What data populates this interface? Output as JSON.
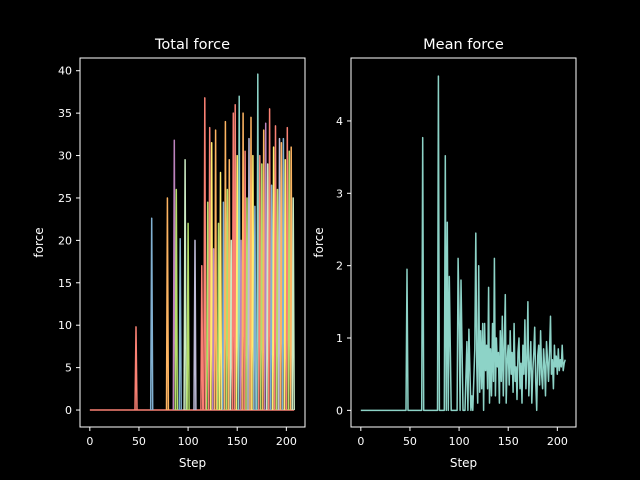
{
  "chart_data": [
    {
      "type": "line",
      "title": "Total force",
      "xlabel": "Step",
      "ylabel": "force",
      "xlim": [
        -10,
        219
      ],
      "ylim": [
        -2,
        41.5
      ],
      "xticks": [
        0,
        50,
        100,
        150,
        200
      ],
      "yticks": [
        0,
        5,
        10,
        15,
        20,
        25,
        30,
        35,
        40
      ],
      "xtick_labels": [
        "0",
        "50",
        "100",
        "150",
        "200"
      ],
      "ytick_labels": [
        "0",
        "5",
        "10",
        "15",
        "20",
        "25",
        "30",
        "35",
        "40"
      ],
      "grid": false,
      "note": "Many overlapping per-body force traces; each trace is a zero baseline with a single spike at one step (approximate).",
      "spike_series": [
        {
          "color": "#fa8174",
          "x": 47,
          "peak": 9.8
        },
        {
          "color": "#81b1d2",
          "x": 63,
          "peak": 22.6
        },
        {
          "color": "#fdb462",
          "x": 79,
          "peak": 25.0
        },
        {
          "color": "#bc82bd",
          "x": 86,
          "peak": 31.8
        },
        {
          "color": "#b3de69",
          "x": 88,
          "peak": 26.0
        },
        {
          "color": "#81b1d2",
          "x": 92,
          "peak": 20.2
        },
        {
          "color": "#ccebc4",
          "x": 97,
          "peak": 29.5
        },
        {
          "color": "#b3de69",
          "x": 100,
          "peak": 22.0
        },
        {
          "color": "#bfbbd9",
          "x": 107,
          "peak": 20.0
        },
        {
          "color": "#fa8174",
          "x": 114,
          "peak": 17.0
        },
        {
          "color": "#fa8174",
          "x": 117,
          "peak": 36.8
        },
        {
          "color": "#b3de69",
          "x": 120,
          "peak": 24.5
        },
        {
          "color": "#fa8174",
          "x": 122,
          "peak": 33.3
        },
        {
          "color": "#ffed6f",
          "x": 124,
          "peak": 31.5
        },
        {
          "color": "#bc82bd",
          "x": 126,
          "peak": 19.0
        },
        {
          "color": "#fdb462",
          "x": 128,
          "peak": 33.0
        },
        {
          "color": "#b3de69",
          "x": 131,
          "peak": 22.0
        },
        {
          "color": "#ffed6f",
          "x": 133,
          "peak": 28.0
        },
        {
          "color": "#81b1d2",
          "x": 136,
          "peak": 24.5
        },
        {
          "color": "#fdb462",
          "x": 138,
          "peak": 34.0
        },
        {
          "color": "#b3de69",
          "x": 140,
          "peak": 26.0
        },
        {
          "color": "#fdb462",
          "x": 142,
          "peak": 29.5
        },
        {
          "color": "#ccebc4",
          "x": 144,
          "peak": 20.0
        },
        {
          "color": "#fa8174",
          "x": 146,
          "peak": 35.0
        },
        {
          "color": "#fa8174",
          "x": 148,
          "peak": 36.0
        },
        {
          "color": "#ffed6f",
          "x": 150,
          "peak": 30.0
        },
        {
          "color": "#8dd3c7",
          "x": 152,
          "peak": 37.0
        },
        {
          "color": "#bc82bd",
          "x": 154,
          "peak": 20.0
        },
        {
          "color": "#fdb462",
          "x": 156,
          "peak": 35.0
        },
        {
          "color": "#fa8174",
          "x": 158,
          "peak": 30.5
        },
        {
          "color": "#b3de69",
          "x": 160,
          "peak": 25.0
        },
        {
          "color": "#bfbbd9",
          "x": 162,
          "peak": 32.0
        },
        {
          "color": "#fdb462",
          "x": 164,
          "peak": 34.5
        },
        {
          "color": "#ffed6f",
          "x": 166,
          "peak": 30.0
        },
        {
          "color": "#81b1d2",
          "x": 168,
          "peak": 24.0
        },
        {
          "color": "#8dd3c7",
          "x": 171,
          "peak": 39.6
        },
        {
          "color": "#fa8174",
          "x": 173,
          "peak": 30.0
        },
        {
          "color": "#b3de69",
          "x": 175,
          "peak": 29.0
        },
        {
          "color": "#fdb462",
          "x": 177,
          "peak": 33.0
        },
        {
          "color": "#bc82bd",
          "x": 179,
          "peak": 33.8
        },
        {
          "color": "#ccebc4",
          "x": 181,
          "peak": 29.0
        },
        {
          "color": "#fa8174",
          "x": 183,
          "peak": 35.5
        },
        {
          "color": "#81b1d2",
          "x": 185,
          "peak": 26.5
        },
        {
          "color": "#ffed6f",
          "x": 187,
          "peak": 31.0
        },
        {
          "color": "#fa8174",
          "x": 189,
          "peak": 33.5
        },
        {
          "color": "#b3de69",
          "x": 191,
          "peak": 26.0
        },
        {
          "color": "#bfbbd9",
          "x": 193,
          "peak": 32.0
        },
        {
          "color": "#fdb462",
          "x": 195,
          "peak": 31.5
        },
        {
          "color": "#81b1d2",
          "x": 197,
          "peak": 32.0
        },
        {
          "color": "#ffed6f",
          "x": 199,
          "peak": 29.5
        },
        {
          "color": "#fa8174",
          "x": 201,
          "peak": 33.3
        },
        {
          "color": "#b3de69",
          "x": 203,
          "peak": 30.5
        },
        {
          "color": "#fdb462",
          "x": 205,
          "peak": 31.0
        },
        {
          "color": "#ccebc4",
          "x": 207,
          "peak": 25.0
        }
      ]
    },
    {
      "type": "line",
      "title": "Mean force",
      "xlabel": "Step",
      "ylabel": "force",
      "xlim": [
        -10,
        219
      ],
      "ylim": [
        -0.23,
        4.87
      ],
      "xticks": [
        0,
        50,
        100,
        150,
        200
      ],
      "yticks": [
        0,
        1,
        2,
        3,
        4
      ],
      "xtick_labels": [
        "0",
        "50",
        "100",
        "150",
        "200"
      ],
      "ytick_labels": [
        "0",
        "1",
        "2",
        "3",
        "4"
      ],
      "grid": false,
      "series": [
        {
          "color": "#8dd3c7",
          "x": [
            0,
            46,
            47,
            48,
            62,
            63,
            64,
            78,
            79,
            80,
            85,
            86,
            87,
            88,
            89,
            90,
            92,
            93,
            94,
            98,
            99,
            100,
            101,
            102,
            104,
            105,
            106,
            108,
            109,
            110,
            112,
            113,
            114,
            116,
            117,
            118,
            119,
            120,
            121,
            122,
            123,
            124,
            125,
            126,
            127,
            128,
            129,
            130,
            131,
            132,
            133,
            134,
            135,
            136,
            137,
            138,
            139,
            140,
            141,
            142,
            143,
            144,
            145,
            146,
            147,
            148,
            149,
            150,
            151,
            152,
            153,
            154,
            155,
            156,
            157,
            158,
            159,
            160,
            161,
            162,
            163,
            164,
            165,
            166,
            167,
            168,
            169,
            170,
            171,
            172,
            173,
            174,
            175,
            176,
            177,
            178,
            179,
            180,
            181,
            182,
            183,
            184,
            185,
            186,
            187,
            188,
            189,
            190,
            191,
            192,
            193,
            194,
            195,
            196,
            197,
            198,
            199,
            200,
            201,
            202,
            203,
            204,
            205,
            206,
            207,
            208
          ],
          "y": [
            0,
            0,
            1.95,
            0,
            0,
            3.77,
            0,
            0,
            4.62,
            0,
            0,
            3.52,
            0,
            2.6,
            0,
            1.85,
            0,
            0,
            0,
            0,
            2.1,
            1.3,
            0,
            1.8,
            0,
            0,
            0,
            0.95,
            0,
            1.12,
            0,
            0.2,
            0,
            0.85,
            2.45,
            0.6,
            0.1,
            2.0,
            0.25,
            1.1,
            0.3,
            1.2,
            0,
            1.2,
            0.55,
            0.9,
            0.3,
            1.7,
            0.1,
            0.85,
            0.2,
            1.2,
            0.4,
            2.1,
            0.2,
            1.0,
            0.6,
            0.8,
            0.1,
            1.1,
            0.4,
            1.3,
            0.2,
            0.9,
            1.6,
            0.1,
            0.7,
            0.9,
            0.35,
            1.1,
            0.5,
            0.8,
            0.25,
            1.2,
            0.4,
            0.6,
            0.15,
            0.8,
            1.0,
            0.3,
            0.65,
            0.1,
            0.9,
            0.5,
            1.25,
            0.3,
            0.7,
            1.5,
            0.2,
            0.6,
            0.95,
            0.1,
            0.55,
            0.8,
            1.15,
            0.4,
            0,
            0.75,
            0.9,
            0.35,
            1.1,
            0.5,
            0.3,
            0.85,
            0.6,
            0.2,
            0.95,
            0.7,
            0.4,
            0.8,
            1.3,
            0.5,
            0.7,
            0.3,
            0.9,
            0.6,
            0.75,
            0.5,
            0.85,
            0.55,
            0.7,
            0.6,
            0.9,
            0.55,
            0.65,
            0.7
          ]
        }
      ]
    }
  ]
}
